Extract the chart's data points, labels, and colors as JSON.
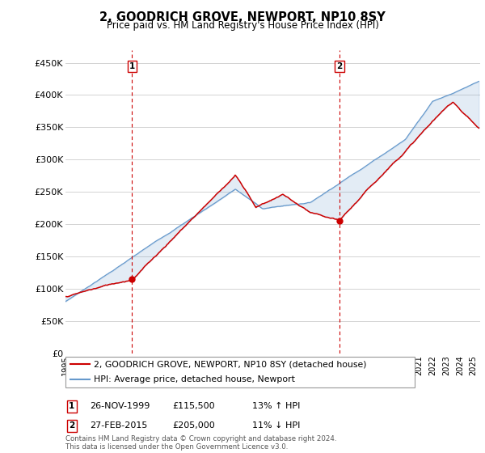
{
  "title": "2, GOODRICH GROVE, NEWPORT, NP10 8SY",
  "subtitle": "Price paid vs. HM Land Registry's House Price Index (HPI)",
  "ylabel_ticks": [
    "£0",
    "£50K",
    "£100K",
    "£150K",
    "£200K",
    "£250K",
    "£300K",
    "£350K",
    "£400K",
    "£450K"
  ],
  "ytick_vals": [
    0,
    50000,
    100000,
    150000,
    200000,
    250000,
    300000,
    350000,
    400000,
    450000
  ],
  "ylim": [
    0,
    470000
  ],
  "xlim_start": 1995.0,
  "xlim_end": 2025.5,
  "marker1_x": 1999.9,
  "marker1_y": 115500,
  "marker2_x": 2015.15,
  "marker2_y": 205000,
  "sale1_date": "26-NOV-1999",
  "sale1_price": "£115,500",
  "sale1_hpi": "13% ↑ HPI",
  "sale2_date": "27-FEB-2015",
  "sale2_price": "£205,000",
  "sale2_hpi": "11% ↓ HPI",
  "legend_line1": "2, GOODRICH GROVE, NEWPORT, NP10 8SY (detached house)",
  "legend_line2": "HPI: Average price, detached house, Newport",
  "footnote": "Contains HM Land Registry data © Crown copyright and database right 2024.\nThis data is licensed under the Open Government Licence v3.0.",
  "line_color_red": "#cc0000",
  "line_color_blue": "#6699cc",
  "background_color": "#ffffff",
  "grid_color": "#cccccc"
}
